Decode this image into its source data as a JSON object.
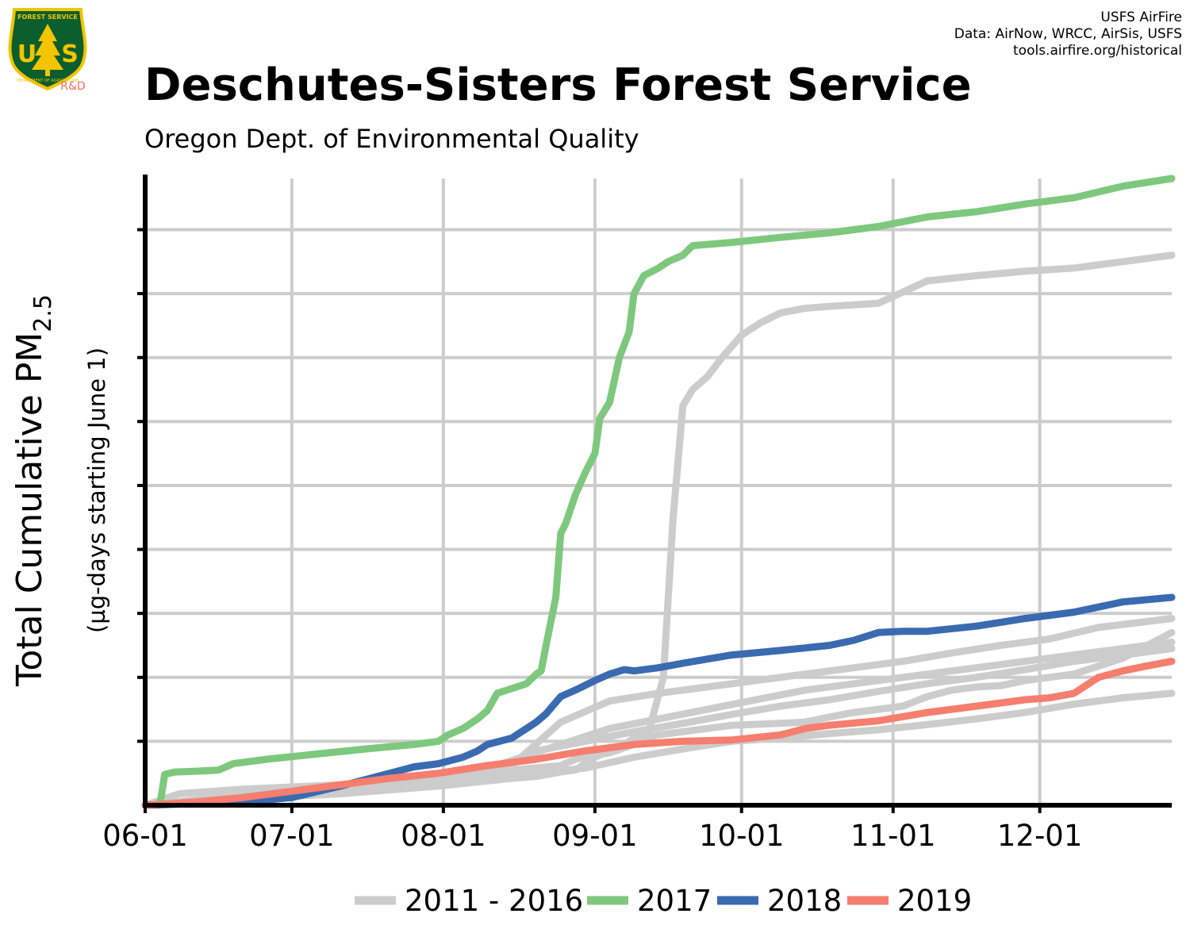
{
  "header": {
    "title": "Deschutes-Sisters Forest Service",
    "subtitle": "Oregon Dept. of Environmental Quality",
    "credits": [
      "USFS AirFire",
      "Data: AirNow, WRCC, AirSis, USFS",
      "tools.airfire.org/historical"
    ]
  },
  "logo": {
    "top_text": "FOREST SERVICE",
    "letters_left": "U",
    "letters_right": "S",
    "bottom_text": "DEPARTMENT OF AGRICULTURE",
    "tag": "R&D",
    "colors": {
      "shield": "#0b5e2e",
      "border": "#f2c500",
      "tag": "#f07060"
    }
  },
  "chart_data": {
    "type": "line",
    "title": "Deschutes-Sisters Forest Service",
    "subtitle": "Oregon Dept. of Environmental Quality",
    "xlabel": "",
    "ylabel_main": "Total Cumulative PM",
    "ylabel_sub": "2.5",
    "ylabel_note": "(µg-days starting June 1)",
    "x_unit": "days since 06-01",
    "xlim": [
      0,
      210
    ],
    "ylim": [
      0,
      9.8
    ],
    "y_ticks_count": 9,
    "x_ticks": [
      {
        "label": "06-01",
        "day": 0
      },
      {
        "label": "07-01",
        "day": 30
      },
      {
        "label": "08-01",
        "day": 61
      },
      {
        "label": "09-01",
        "day": 92
      },
      {
        "label": "10-01",
        "day": 122
      },
      {
        "label": "11-01",
        "day": 153
      },
      {
        "label": "12-01",
        "day": 183
      }
    ],
    "grid": true,
    "legend_position": "bottom",
    "series": [
      {
        "name": "2011 - 2016",
        "color": "#cccccc",
        "points": [
          [
            0,
            0
          ],
          [
            7,
            0.18
          ],
          [
            20,
            0.25
          ],
          [
            40,
            0.32
          ],
          [
            60,
            0.37
          ],
          [
            80,
            0.5
          ],
          [
            90,
            0.58
          ],
          [
            100,
            0.75
          ],
          [
            110,
            0.88
          ],
          [
            120,
            1.0
          ],
          [
            130,
            1.05
          ],
          [
            140,
            1.12
          ],
          [
            150,
            1.18
          ],
          [
            160,
            1.26
          ],
          [
            170,
            1.35
          ],
          [
            180,
            1.45
          ],
          [
            190,
            1.58
          ],
          [
            200,
            1.68
          ],
          [
            210,
            1.75
          ]
        ]
      },
      {
        "name": "",
        "color": "#cccccc",
        "points": [
          [
            0,
            0
          ],
          [
            10,
            0.08
          ],
          [
            30,
            0.22
          ],
          [
            45,
            0.32
          ],
          [
            60,
            0.42
          ],
          [
            75,
            0.62
          ],
          [
            85,
            1.3
          ],
          [
            95,
            1.63
          ],
          [
            105,
            1.75
          ],
          [
            115,
            1.85
          ],
          [
            125,
            1.95
          ],
          [
            135,
            2.05
          ],
          [
            145,
            2.15
          ],
          [
            155,
            2.25
          ],
          [
            165,
            2.38
          ],
          [
            175,
            2.5
          ],
          [
            185,
            2.6
          ],
          [
            195,
            2.78
          ],
          [
            210,
            2.92
          ]
        ]
      },
      {
        "name": "",
        "color": "#cccccc",
        "points": [
          [
            0,
            0
          ],
          [
            15,
            0.12
          ],
          [
            35,
            0.22
          ],
          [
            55,
            0.34
          ],
          [
            70,
            0.52
          ],
          [
            80,
            0.85
          ],
          [
            90,
            1.0
          ],
          [
            100,
            1.15
          ],
          [
            110,
            1.28
          ],
          [
            120,
            1.42
          ],
          [
            130,
            1.55
          ],
          [
            140,
            1.65
          ],
          [
            150,
            1.78
          ],
          [
            160,
            1.9
          ],
          [
            170,
            2.0
          ],
          [
            180,
            2.12
          ],
          [
            190,
            2.25
          ],
          [
            200,
            2.35
          ],
          [
            210,
            2.45
          ]
        ]
      },
      {
        "name": "",
        "color": "#cccccc",
        "points": [
          [
            0,
            0
          ],
          [
            15,
            0.1
          ],
          [
            35,
            0.2
          ],
          [
            55,
            0.3
          ],
          [
            65,
            0.45
          ],
          [
            75,
            0.7
          ],
          [
            85,
            0.95
          ],
          [
            95,
            1.2
          ],
          [
            105,
            1.35
          ],
          [
            115,
            1.5
          ],
          [
            125,
            1.65
          ],
          [
            135,
            1.8
          ],
          [
            145,
            1.9
          ],
          [
            155,
            2.0
          ],
          [
            165,
            2.1
          ],
          [
            175,
            2.2
          ],
          [
            185,
            2.3
          ],
          [
            195,
            2.4
          ],
          [
            210,
            2.55
          ]
        ]
      },
      {
        "name": "",
        "color": "#cccccc",
        "points": [
          [
            0,
            0
          ],
          [
            20,
            0.1
          ],
          [
            40,
            0.18
          ],
          [
            60,
            0.3
          ],
          [
            70,
            0.45
          ],
          [
            75,
            0.55
          ],
          [
            85,
            0.62
          ],
          [
            88,
            0.72
          ],
          [
            95,
            0.82
          ],
          [
            100,
            0.95
          ],
          [
            102,
            1.05
          ],
          [
            105,
            1.1
          ],
          [
            110,
            1.15
          ],
          [
            115,
            1.2
          ],
          [
            120,
            1.25
          ],
          [
            130,
            1.28
          ],
          [
            135,
            1.3
          ],
          [
            140,
            1.38
          ],
          [
            145,
            1.45
          ],
          [
            150,
            1.5
          ],
          [
            155,
            1.55
          ],
          [
            160,
            1.7
          ],
          [
            165,
            1.8
          ],
          [
            170,
            1.85
          ],
          [
            175,
            1.87
          ],
          [
            180,
            1.95
          ],
          [
            190,
            2.05
          ],
          [
            200,
            2.3
          ],
          [
            210,
            2.7
          ]
        ]
      },
      {
        "name": "",
        "color": "#cccccc",
        "points": [
          [
            0,
            0
          ],
          [
            20,
            0.12
          ],
          [
            40,
            0.2
          ],
          [
            60,
            0.3
          ],
          [
            75,
            0.42
          ],
          [
            80,
            0.45
          ],
          [
            85,
            0.52
          ],
          [
            88,
            0.55
          ],
          [
            92,
            0.75
          ],
          [
            98,
            0.95
          ],
          [
            100,
            1.05
          ],
          [
            103,
            1.15
          ],
          [
            106,
            2.0
          ],
          [
            108,
            4.5
          ],
          [
            110,
            6.25
          ],
          [
            112,
            6.5
          ],
          [
            115,
            6.7
          ],
          [
            118,
            7.0
          ],
          [
            122,
            7.35
          ],
          [
            126,
            7.55
          ],
          [
            130,
            7.7
          ],
          [
            135,
            7.77
          ],
          [
            140,
            7.8
          ],
          [
            150,
            7.85
          ],
          [
            160,
            8.2
          ],
          [
            170,
            8.28
          ],
          [
            180,
            8.35
          ],
          [
            190,
            8.4
          ],
          [
            200,
            8.5
          ],
          [
            210,
            8.6
          ]
        ]
      },
      {
        "name": "2017",
        "color": "#7ec87e",
        "points": [
          [
            0,
            0
          ],
          [
            3,
            0
          ],
          [
            4,
            0.48
          ],
          [
            6,
            0.52
          ],
          [
            10,
            0.53
          ],
          [
            15,
            0.55
          ],
          [
            18,
            0.65
          ],
          [
            25,
            0.72
          ],
          [
            35,
            0.8
          ],
          [
            45,
            0.88
          ],
          [
            55,
            0.95
          ],
          [
            60,
            1.0
          ],
          [
            62,
            1.1
          ],
          [
            65,
            1.2
          ],
          [
            68,
            1.35
          ],
          [
            70,
            1.48
          ],
          [
            72,
            1.75
          ],
          [
            76,
            1.85
          ],
          [
            78,
            1.9
          ],
          [
            80,
            2.05
          ],
          [
            81,
            2.1
          ],
          [
            82,
            2.5
          ],
          [
            84,
            3.25
          ],
          [
            85,
            4.25
          ],
          [
            86,
            4.4
          ],
          [
            88,
            4.85
          ],
          [
            90,
            5.2
          ],
          [
            92,
            5.5
          ],
          [
            93,
            6.05
          ],
          [
            95,
            6.3
          ],
          [
            97,
            7.0
          ],
          [
            99,
            7.4
          ],
          [
            100,
            8.0
          ],
          [
            102,
            8.28
          ],
          [
            105,
            8.4
          ],
          [
            107,
            8.5
          ],
          [
            110,
            8.6
          ],
          [
            112,
            8.75
          ],
          [
            120,
            8.8
          ],
          [
            130,
            8.88
          ],
          [
            140,
            8.95
          ],
          [
            150,
            9.05
          ],
          [
            160,
            9.2
          ],
          [
            170,
            9.28
          ],
          [
            180,
            9.4
          ],
          [
            190,
            9.5
          ],
          [
            200,
            9.68
          ],
          [
            210,
            9.8
          ]
        ]
      },
      {
        "name": "2018",
        "color": "#3a6ab0",
        "points": [
          [
            0,
            0
          ],
          [
            20,
            0.05
          ],
          [
            30,
            0.12
          ],
          [
            40,
            0.3
          ],
          [
            50,
            0.5
          ],
          [
            55,
            0.6
          ],
          [
            60,
            0.65
          ],
          [
            65,
            0.75
          ],
          [
            68,
            0.85
          ],
          [
            70,
            0.95
          ],
          [
            75,
            1.05
          ],
          [
            78,
            1.2
          ],
          [
            80,
            1.3
          ],
          [
            82,
            1.43
          ],
          [
            85,
            1.7
          ],
          [
            88,
            1.8
          ],
          [
            92,
            1.95
          ],
          [
            95,
            2.05
          ],
          [
            98,
            2.12
          ],
          [
            100,
            2.1
          ],
          [
            105,
            2.15
          ],
          [
            110,
            2.22
          ],
          [
            120,
            2.35
          ],
          [
            130,
            2.42
          ],
          [
            140,
            2.5
          ],
          [
            145,
            2.58
          ],
          [
            150,
            2.7
          ],
          [
            155,
            2.72
          ],
          [
            160,
            2.72
          ],
          [
            170,
            2.8
          ],
          [
            180,
            2.92
          ],
          [
            190,
            3.02
          ],
          [
            200,
            3.18
          ],
          [
            210,
            3.25
          ]
        ]
      },
      {
        "name": "2019",
        "color": "#f57e6e",
        "points": [
          [
            0,
            0
          ],
          [
            10,
            0.05
          ],
          [
            20,
            0.12
          ],
          [
            30,
            0.22
          ],
          [
            40,
            0.32
          ],
          [
            50,
            0.42
          ],
          [
            60,
            0.5
          ],
          [
            70,
            0.62
          ],
          [
            80,
            0.72
          ],
          [
            90,
            0.85
          ],
          [
            100,
            0.95
          ],
          [
            110,
            1.0
          ],
          [
            120,
            1.02
          ],
          [
            130,
            1.1
          ],
          [
            135,
            1.2
          ],
          [
            140,
            1.25
          ],
          [
            150,
            1.32
          ],
          [
            160,
            1.45
          ],
          [
            170,
            1.55
          ],
          [
            180,
            1.65
          ],
          [
            185,
            1.68
          ],
          [
            190,
            1.75
          ],
          [
            195,
            2.0
          ],
          [
            200,
            2.1
          ],
          [
            205,
            2.18
          ],
          [
            210,
            2.25
          ]
        ]
      }
    ]
  }
}
